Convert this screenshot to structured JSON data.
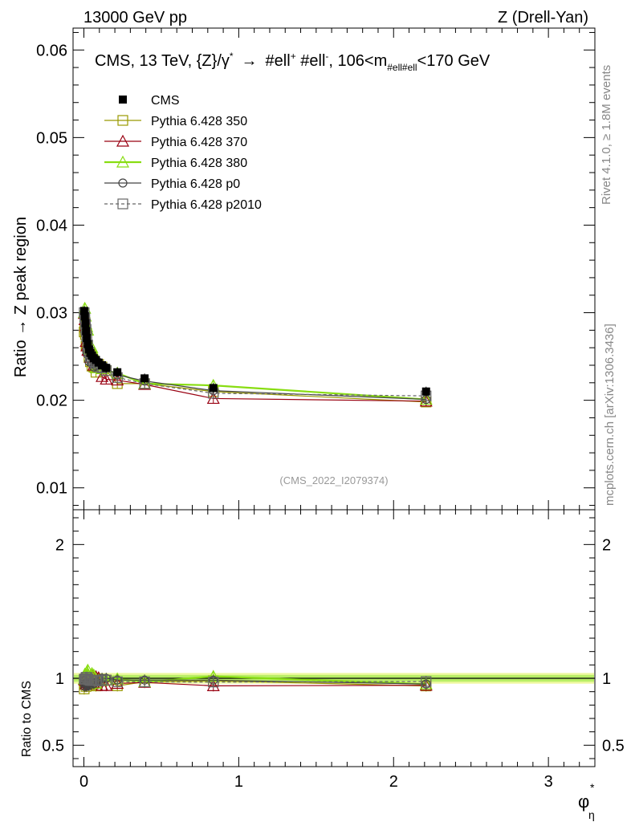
{
  "header": {
    "left": "13000 GeV pp",
    "right": "Z (Drell-Yan)"
  },
  "side_labels": {
    "rivet": "Rivet 4.1.0, ≥ 1.8M events",
    "mcplots": "mcplots.cern.ch [arXiv:1306.3436]"
  },
  "watermark": "(CMS_2022_I2079374)",
  "chart_data": [
    {
      "type": "line",
      "panel": "main",
      "title_parts": {
        "a": "CMS, 13 TeV, {Z}/γ",
        "a_sup": "*",
        "arrow": "→",
        "b": "#ell",
        "b_sup": "+",
        "c": " #ell",
        "c_sup": "-",
        "d": ", 106<m",
        "d_sub": "#ell#ell",
        "e": "<170 GeV"
      },
      "ylabel": "Ratio → Z peak region",
      "xlim": [
        -0.07,
        3.3
      ],
      "ylim": [
        0.0075,
        0.0625
      ],
      "yticks": [
        "0.01",
        "0.02",
        "0.03",
        "0.04",
        "0.05",
        "0.06"
      ],
      "x": [
        0.002,
        0.006,
        0.01,
        0.014,
        0.019,
        0.025,
        0.033,
        0.042,
        0.052,
        0.064,
        0.078,
        0.095,
        0.117,
        0.144,
        0.216,
        0.392,
        0.836,
        2.21
      ],
      "series": [
        {
          "name": "CMS",
          "color": "#000000",
          "marker": "filled-square",
          "line": "none",
          "values": [
            0.0302,
            0.0296,
            0.0288,
            0.0279,
            0.0271,
            0.0264,
            0.0258,
            0.0254,
            0.0251,
            0.0248,
            0.0246,
            0.0243,
            0.024,
            0.0237,
            0.0232,
            0.0225,
            0.0214,
            0.021
          ]
        },
        {
          "name": "Pythia 6.428 350",
          "color": "#999900",
          "marker": "open-square",
          "line": "solid",
          "values": [
            0.0278,
            0.0283,
            0.0275,
            0.0262,
            0.0263,
            0.0258,
            0.0249,
            0.0244,
            0.0239,
            0.0238,
            0.0232,
            0.0241,
            0.0238,
            0.0234,
            0.0219,
            0.0219,
            0.021,
            0.0198
          ]
        },
        {
          "name": "Pythia 6.428 370",
          "color": "#990011",
          "marker": "open-triangle",
          "line": "solid",
          "values": [
            0.0299,
            0.0292,
            0.0285,
            0.0267,
            0.0262,
            0.0257,
            0.0256,
            0.0249,
            0.0256,
            0.024,
            0.0249,
            0.0244,
            0.0227,
            0.0224,
            0.0223,
            0.0218,
            0.0202,
            0.0199
          ]
        },
        {
          "name": "Pythia 6.428 380",
          "color": "#88dd11",
          "marker": "open-triangle",
          "line": "solid",
          "values": [
            0.03,
            0.0305,
            0.0296,
            0.0287,
            0.0284,
            0.028,
            0.0259,
            0.0258,
            0.026,
            0.0254,
            0.0237,
            0.024,
            0.0236,
            0.0234,
            0.0231,
            0.0219,
            0.0217,
            0.0201
          ]
        },
        {
          "name": "Pythia 6.428 p0",
          "color": "#444444",
          "marker": "open-circle",
          "line": "solid",
          "values": [
            0.0297,
            0.0278,
            0.0275,
            0.0269,
            0.0255,
            0.0252,
            0.0244,
            0.0246,
            0.0242,
            0.0238,
            0.0239,
            0.024,
            0.024,
            0.0237,
            0.0229,
            0.0222,
            0.0211,
            0.0201
          ]
        },
        {
          "name": "Pythia 6.428 p2010",
          "color": "#666666",
          "marker": "open-square",
          "line": "dashed",
          "values": [
            0.03,
            0.0294,
            0.0287,
            0.0281,
            0.0273,
            0.0263,
            0.0255,
            0.025,
            0.0247,
            0.0244,
            0.0242,
            0.0238,
            0.0237,
            0.0234,
            0.0226,
            0.0219,
            0.0208,
            0.0205
          ]
        }
      ]
    },
    {
      "type": "line",
      "panel": "ratio",
      "ylabel": "Ratio to CMS",
      "xlabel": "φ",
      "xlabel_sup": "*",
      "xlabel_sub": "η",
      "xlim": [
        -0.07,
        3.3
      ],
      "ylim": [
        0.34,
        2.26
      ],
      "yticks": [
        "0.5",
        "1",
        "2"
      ],
      "yticks_right": [
        "0.5",
        "1",
        "2"
      ],
      "xticks": [
        "0",
        "1",
        "2",
        "3"
      ],
      "band": [
        0.975,
        1.025
      ],
      "note": "ratio = series / CMS"
    }
  ]
}
